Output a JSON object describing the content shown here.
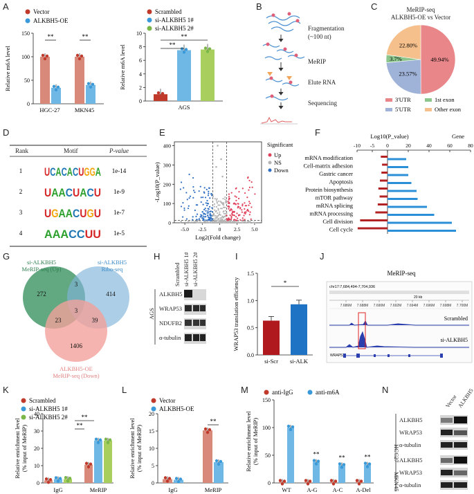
{
  "panel_letters": [
    "A",
    "B",
    "C",
    "D",
    "E",
    "F",
    "G",
    "H",
    "I",
    "J",
    "K",
    "L",
    "M",
    "N"
  ],
  "colors": {
    "red": "#c0392b",
    "salmon": "#d9897a",
    "blue": "#3a9ad9",
    "lightblue": "#7cc1ea",
    "green": "#7ab648",
    "orange": "#f4b183",
    "pie_red": "#e8868a",
    "pie_green": "#8cc68c",
    "pie_blue": "#9fb3d8",
    "pie_orange": "#f6c08c"
  },
  "chart_data": [
    {
      "id": "A1",
      "type": "bar",
      "ylabel": "Relative m6A level",
      "ylim": [
        0,
        150
      ],
      "yticks": [
        0,
        50,
        100,
        150
      ],
      "categories": [
        "HGC-27",
        "MKN45"
      ],
      "series": [
        {
          "name": "Vector",
          "values": [
            100,
            100
          ],
          "color": "#d9897a"
        },
        {
          "name": "ALKBH5-OE",
          "values": [
            34,
            40
          ],
          "color": "#6fb8e6"
        }
      ],
      "significance": [
        "**",
        "**"
      ]
    },
    {
      "id": "A2",
      "type": "bar",
      "ylabel": "Relative m6A level",
      "ylim": [
        0,
        10
      ],
      "yticks": [
        0,
        2,
        4,
        6,
        8,
        10
      ],
      "categories": [
        "AGS"
      ],
      "series": [
        {
          "name": "Scrambled",
          "values": [
            1
          ],
          "color": "#c0392b"
        },
        {
          "name": "si-ALKBH5 1#",
          "values": [
            7.5
          ],
          "color": "#6fb8e6"
        },
        {
          "name": "si-ALKBH5 2#",
          "values": [
            7.6
          ],
          "color": "#a8cf5e"
        }
      ],
      "significance": [
        "**",
        "**"
      ]
    },
    {
      "id": "C",
      "type": "pie",
      "title": "MeRIP-seq",
      "subtitle": "ALKBH5-OE vs Vector",
      "labels": [
        "3'UTR",
        "1st exon",
        "5'UTR",
        "Other exon"
      ],
      "values": [
        49.94,
        3.7,
        23.57,
        22.8
      ],
      "value_labels": [
        "49.94%",
        "3.7%",
        "23.57%",
        "22.80%"
      ]
    },
    {
      "id": "E",
      "type": "scatter",
      "xlabel": "Log2(Fold change)",
      "ylabel": "-Log10(P_value)",
      "xlim": [
        -6.5,
        6
      ],
      "ylim": [
        0,
        420
      ],
      "xticks": [
        "-5.0",
        "-2.5",
        "0",
        "2.5",
        "5.0"
      ],
      "yticks": [
        "0",
        "100",
        "200",
        "300",
        "400"
      ],
      "legend_title": "Significant",
      "legend": [
        "Up",
        "NS",
        "Down"
      ]
    },
    {
      "id": "F",
      "type": "bar",
      "orientation": "horizontal",
      "xlabel": "Log10(P_value)",
      "x2label": "Gene",
      "xticks": [
        -10,
        -5,
        0,
        20,
        40,
        60,
        80
      ],
      "categories": [
        "mRNA modification",
        "Cell-matrix adhesion",
        "Gastric cancer",
        "Apoptosis",
        "Protein biosynthesis",
        "mTOR pathway",
        "mRNA splicing",
        "mRNA processing",
        "Cell division",
        "Cell cycle"
      ],
      "series": [
        {
          "name": "Log10(P_value)",
          "values": [
            -2.2,
            -1.8,
            -2.0,
            -2.5,
            -3.0,
            -2.6,
            -3.2,
            -4.0,
            -9.0,
            -9.8
          ]
        },
        {
          "name": "Gene",
          "values": [
            18,
            20,
            20,
            23,
            28,
            29,
            38,
            45,
            62,
            66
          ]
        }
      ]
    },
    {
      "id": "I",
      "type": "bar",
      "ylabel": "WRAP53 translation efficiency",
      "ylim": [
        0,
        1.5
      ],
      "yticks": [
        "0.0",
        "0.5",
        "1.0",
        "1.5"
      ],
      "categories": [
        "si-Scr",
        "si-ALK"
      ],
      "values": [
        0.63,
        0.93
      ],
      "significance": [
        "*"
      ]
    },
    {
      "id": "K",
      "type": "bar",
      "ylabel": "Relative enrichment level (% input of MeRIP)",
      "ylim": [
        0,
        40
      ],
      "yticks": [
        0,
        10,
        20,
        30,
        40
      ],
      "categories": [
        "IgG",
        "MeRIP"
      ],
      "series": [
        {
          "name": "Scrambled",
          "values": [
            1.5,
            10.5
          ]
        },
        {
          "name": "si-ALKBH5 1#",
          "values": [
            2.2,
            24.5
          ]
        },
        {
          "name": "si-ALKBH5 2#",
          "values": [
            2.3,
            24.5
          ]
        }
      ],
      "significance": [
        "**",
        "**"
      ]
    },
    {
      "id": "L",
      "type": "bar",
      "ylabel": "Relative enrichment level (% input of MeRIP)",
      "ylim": [
        0,
        20
      ],
      "yticks": [
        0,
        5,
        10,
        15,
        20
      ],
      "categories": [
        "IgG",
        "MeRIP"
      ],
      "series": [
        {
          "name": "Vector",
          "values": [
            1.1,
            15.2
          ]
        },
        {
          "name": "ALKBH5-OE",
          "values": [
            0.9,
            6.0
          ]
        }
      ],
      "significance": [
        "**"
      ]
    },
    {
      "id": "M",
      "type": "bar",
      "ylabel": "Relative enrichment level (% input of MeRIP)",
      "ylim": [
        0,
        150
      ],
      "yticks": [
        0,
        50,
        100,
        150
      ],
      "categories": [
        "WT",
        "A-G",
        "A-C",
        "A-Del"
      ],
      "series": [
        {
          "name": "anti-IgG",
          "values": [
            2,
            2,
            2,
            2
          ]
        },
        {
          "name": "anti-m6A",
          "values": [
            100,
            38,
            32,
            33
          ]
        }
      ],
      "significance": [
        "**",
        "**",
        "**"
      ]
    }
  ],
  "panelB": {
    "steps": [
      "Fragmentation",
      "(~100 nt)",
      "MeRIP",
      "Elute RNA",
      "Sequencing"
    ]
  },
  "panelD": {
    "headers": [
      "Rank",
      "Motif",
      "P-value"
    ],
    "rows": [
      {
        "rank": "1",
        "motif": "UCACACUGGA",
        "p": "1e-14"
      },
      {
        "rank": "2",
        "motif": "UAACUACU",
        "p": "1e-9"
      },
      {
        "rank": "3",
        "motif": "UGAACUGU",
        "p": "1e-7"
      },
      {
        "rank": "4",
        "motif": "AAACCUU",
        "p": "1e-5"
      }
    ]
  },
  "panelG": {
    "set1": [
      "si-ALKBH5",
      "MeRIP-seq (Up)"
    ],
    "set2": [
      "si-ALKBH5",
      "Ribo-seq"
    ],
    "set3": [
      "ALKBH5-OE",
      "MeRIP-seq (Down)"
    ],
    "counts": [
      "272",
      "3",
      "414",
      "23",
      "3",
      "39",
      "1406"
    ]
  },
  "panelH": {
    "lanes": [
      "Scrambled",
      "si-ALKBH5 1#",
      "si-ALKBH5 2#"
    ],
    "rows": [
      "ALKBH5",
      "WRAP53",
      "NDUFB2",
      "α-tubulin"
    ],
    "cell": "AGS"
  },
  "panelJ": {
    "title": "MeRIP-seq",
    "locus": "chr17:7,684,494-7,704,936",
    "scale": "20 kb",
    "ticks": [
      "7.686M",
      "7.688M",
      "7.690M",
      "7.692M",
      "7.694M",
      "7.696M",
      "7.698M",
      "7.700M"
    ],
    "tracks": [
      "Scrambled",
      "si-ALKBH5"
    ],
    "gene": "WRAP53"
  },
  "panelN": {
    "lanes": [
      "Vector",
      "ALKBH5"
    ],
    "groups": [
      {
        "cell": "HGC27",
        "rows": [
          "ALKBH5",
          "WRAP53",
          "α-tubulin"
        ]
      },
      {
        "cell": "MKN45",
        "rows": [
          "ALKBH5",
          "WRAP53",
          "α-tubulin"
        ]
      }
    ]
  }
}
